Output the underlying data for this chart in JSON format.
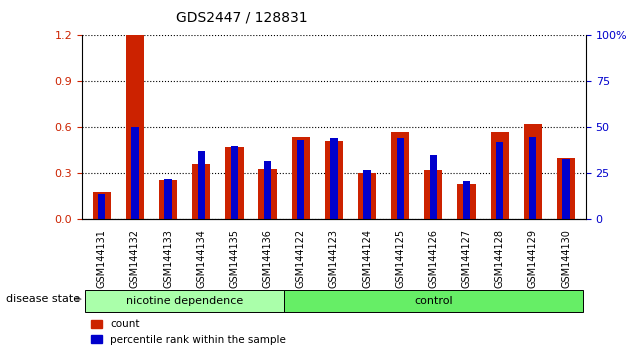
{
  "title": "GDS2447 / 128831",
  "categories": [
    "GSM144131",
    "GSM144132",
    "GSM144133",
    "GSM144134",
    "GSM144135",
    "GSM144136",
    "GSM144122",
    "GSM144123",
    "GSM144124",
    "GSM144125",
    "GSM144126",
    "GSM144127",
    "GSM144128",
    "GSM144129",
    "GSM144130"
  ],
  "count_values": [
    0.18,
    1.2,
    0.26,
    0.36,
    0.47,
    0.33,
    0.54,
    0.51,
    0.3,
    0.57,
    0.32,
    0.23,
    0.57,
    0.62,
    0.4
  ],
  "percentile_values": [
    0.14,
    0.5,
    0.22,
    0.37,
    0.4,
    0.32,
    0.43,
    0.44,
    0.27,
    0.44,
    0.35,
    0.21,
    0.42,
    0.45,
    0.33
  ],
  "count_color": "#cc2200",
  "percentile_color": "#0000cc",
  "left_ylim": [
    0,
    1.2
  ],
  "left_yticks": [
    0,
    0.3,
    0.6,
    0.9,
    1.2
  ],
  "right_ylim": [
    0,
    100
  ],
  "right_yticks": [
    0,
    25,
    50,
    75,
    100
  ],
  "bar_width": 0.35,
  "group1_label": "nicotine dependence",
  "group2_label": "control",
  "group1_indices": [
    0,
    1,
    2,
    3,
    4,
    5
  ],
  "group2_indices": [
    6,
    7,
    8,
    9,
    10,
    11,
    12,
    13,
    14
  ],
  "group1_color": "#aaffaa",
  "group2_color": "#66ee66",
  "disease_state_label": "disease state",
  "legend_count": "count",
  "legend_percentile": "percentile rank within the sample",
  "background_color": "#ffffff",
  "tick_label_color_left": "#cc2200",
  "tick_label_color_right": "#0000cc"
}
